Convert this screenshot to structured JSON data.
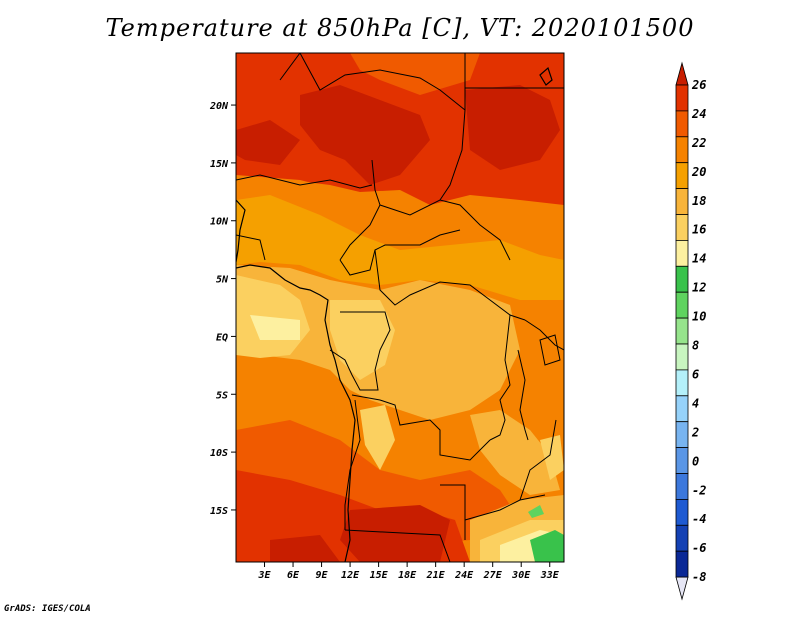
{
  "title": "Temperature at 850hPa [C], VT: 2020101500",
  "credit": "GrADS: IGES/COLA",
  "map": {
    "lat_range": [
      -19.5,
      24.5
    ],
    "lon_range": [
      0,
      34.5
    ],
    "lat_ticks": [
      {
        "value": 20,
        "label": "20N"
      },
      {
        "value": 15,
        "label": "15N"
      },
      {
        "value": 10,
        "label": "10N"
      },
      {
        "value": 5,
        "label": "5N"
      },
      {
        "value": 0,
        "label": "EQ"
      },
      {
        "value": -5,
        "label": "5S"
      },
      {
        "value": -10,
        "label": "10S"
      },
      {
        "value": -15,
        "label": "15S"
      }
    ],
    "lon_ticks": [
      {
        "value": 3,
        "label": "3E"
      },
      {
        "value": 6,
        "label": "6E"
      },
      {
        "value": 9,
        "label": "9E"
      },
      {
        "value": 12,
        "label": "12E"
      },
      {
        "value": 15,
        "label": "15E"
      },
      {
        "value": 18,
        "label": "18E"
      },
      {
        "value": 21,
        "label": "21E"
      },
      {
        "value": 24,
        "label": "24E"
      },
      {
        "value": 27,
        "label": "27E"
      },
      {
        "value": 30,
        "label": "30E"
      },
      {
        "value": 33,
        "label": "33E"
      }
    ]
  },
  "legend": {
    "labels": [
      "26",
      "24",
      "22",
      "20",
      "18",
      "16",
      "14",
      "12",
      "10",
      "8",
      "6",
      "4",
      "2",
      "0",
      "-2",
      "-4",
      "-6",
      "-8"
    ],
    "colors": [
      "#c81e00",
      "#e23200",
      "#f05a00",
      "#f58200",
      "#f5a000",
      "#f8b43a",
      "#fbd060",
      "#fdf0a0",
      "#39c24b",
      "#5fd35f",
      "#96e48c",
      "#c8f5c0",
      "#b4f0fa",
      "#96d2fa",
      "#78b4f0",
      "#5a96e6",
      "#3c78dc",
      "#1e5ad2",
      "#1441b4",
      "#0a2896",
      "#08147a"
    ]
  }
}
